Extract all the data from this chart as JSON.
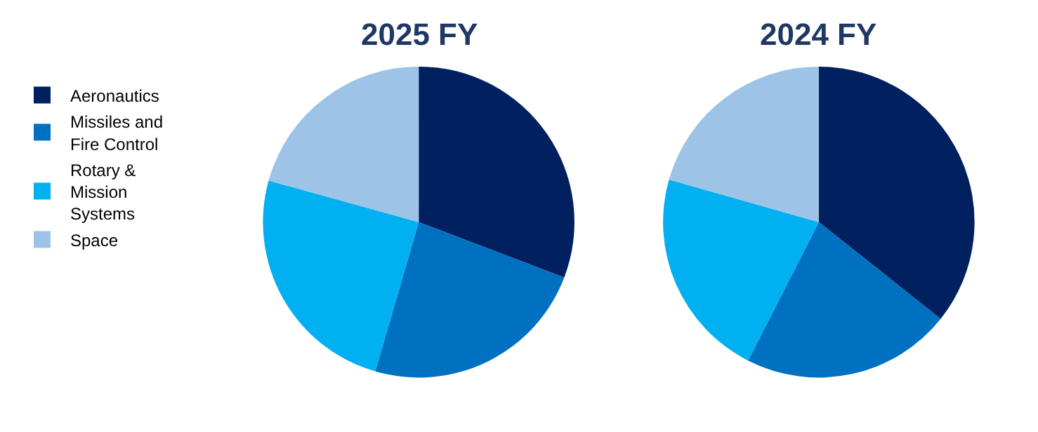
{
  "chart_data": [
    {
      "type": "pie",
      "title": "2025 FY",
      "categories": [
        "Aeronautics",
        "Missiles and Fire Control",
        "Rotary & Mission Systems",
        "Space"
      ],
      "values": [
        30.8,
        23.7,
        24.8,
        20.7
      ],
      "colors": [
        "#002060",
        "#0070c0",
        "#00b0f0",
        "#9dc3e6"
      ],
      "legend": "left"
    },
    {
      "type": "pie",
      "title": "2024 FY",
      "categories": [
        null,
        null,
        null,
        null
      ],
      "values": [
        35.7,
        21.8,
        21.9,
        20.6
      ],
      "colors": [
        "#002060",
        "#0070c0",
        "#00b0f0",
        "#9dc3e6"
      ]
    }
  ]
}
